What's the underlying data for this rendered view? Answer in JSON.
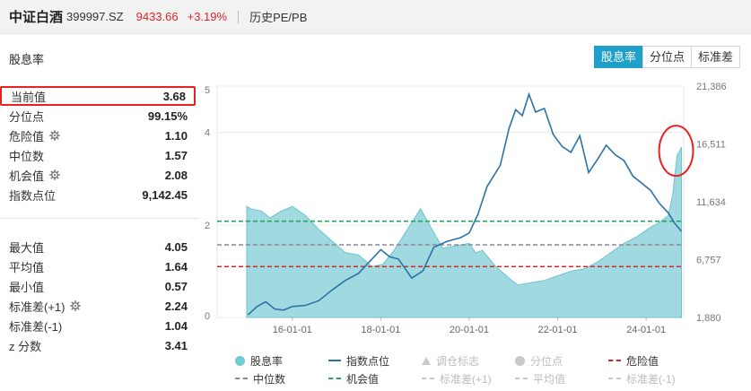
{
  "header": {
    "name": "中证白酒",
    "code": "399997.SZ",
    "price": "9433.66",
    "change": "+3.19%",
    "history_link": "历史PE/PB"
  },
  "section_title": "股息率",
  "tabs": [
    {
      "label": "股息率",
      "active": true
    },
    {
      "label": "分位点",
      "active": false
    },
    {
      "label": "标准差",
      "active": false
    }
  ],
  "stats_top": [
    {
      "label": "当前值",
      "value": "3.68",
      "highlight": true,
      "gear": false
    },
    {
      "label": "分位点",
      "value": "99.15%",
      "gear": false
    },
    {
      "label": "危险值",
      "value": "1.10",
      "gear": true
    },
    {
      "label": "中位数",
      "value": "1.57",
      "gear": false
    },
    {
      "label": "机会值",
      "value": "2.08",
      "gear": true
    },
    {
      "label": "指数点位",
      "value": "9,142.45",
      "gear": false
    }
  ],
  "stats_bottom": [
    {
      "label": "最大值",
      "value": "4.05",
      "gear": false
    },
    {
      "label": "平均值",
      "value": "1.64",
      "gear": false
    },
    {
      "label": "最小值",
      "value": "0.57",
      "gear": false
    },
    {
      "label": "标准差(+1)",
      "value": "2.24",
      "gear": true
    },
    {
      "label": "标准差(-1)",
      "value": "1.04",
      "gear": false
    },
    {
      "label": "z 分数",
      "value": "3.41",
      "gear": false
    }
  ],
  "legend": [
    {
      "label": "股息率",
      "shape": "dot",
      "color": "#6fcbd4",
      "on": true
    },
    {
      "label": "指数点位",
      "shape": "line",
      "color": "#2a73a8",
      "on": true
    },
    {
      "label": "调仓标志",
      "shape": "triangle",
      "color": "#c9c9c9",
      "on": false
    },
    {
      "label": "分位点",
      "shape": "dot",
      "color": "#c9c9c9",
      "on": false
    },
    {
      "label": "危险值",
      "shape": "dash",
      "color": "#d62828",
      "on": true
    },
    {
      "label": "中位数",
      "shape": "dash",
      "color": "#8a8a9a",
      "on": true
    },
    {
      "label": "机会值",
      "shape": "dash",
      "color": "#27a55a",
      "on": true
    },
    {
      "label": "标准差(+1)",
      "shape": "dash",
      "color": "#c9c9c9",
      "on": false
    },
    {
      "label": "平均值",
      "shape": "dash",
      "color": "#c9c9c9",
      "on": false
    },
    {
      "label": "标准差(-1)",
      "shape": "dash",
      "color": "#c9c9c9",
      "on": false
    }
  ],
  "colors": {
    "area_fill": "#8fd3da",
    "area_line": "#6cc4cd",
    "index_line": "#2a73a8",
    "danger": "#d62828",
    "median": "#8a8a9a",
    "opportunity": "#27a55a",
    "annotation": "#e8231f",
    "accent_tab": "#1fa0c8"
  },
  "chart_data": {
    "type": "area",
    "x_ticks": [
      "16-01-01",
      "18-01-01",
      "20-01-01",
      "22-01-01",
      "24-01-01"
    ],
    "x_tick_years": [
      2016,
      2018,
      2020,
      2022,
      2024
    ],
    "x_range": [
      2014.3,
      2024.85
    ],
    "y_left_ticks": [
      "0",
      "2",
      "4",
      "5"
    ],
    "y_left_range": [
      0,
      5
    ],
    "y_right_ticks": [
      "1,880",
      "6,757",
      "11,634",
      "16,511",
      "21,386"
    ],
    "y_right_range": [
      1880,
      21386
    ],
    "reference_lines": {
      "danger": 1.1,
      "median": 1.57,
      "opportunity": 2.08
    },
    "series": [
      {
        "name": "股息率",
        "axis": "left",
        "x": [
          2014.97,
          2015.05,
          2015.3,
          2015.5,
          2015.75,
          2016.0,
          2016.3,
          2016.6,
          2016.9,
          2017.2,
          2017.5,
          2017.8,
          2018.05,
          2018.3,
          2018.6,
          2018.9,
          2019.1,
          2019.4,
          2019.7,
          2020.0,
          2020.15,
          2020.3,
          2020.6,
          2020.9,
          2021.1,
          2021.4,
          2021.7,
          2022.0,
          2022.3,
          2022.6,
          2022.9,
          2023.2,
          2023.5,
          2023.8,
          2024.1,
          2024.3,
          2024.5,
          2024.6,
          2024.7,
          2024.8
        ],
        "values": [
          2.4,
          2.35,
          2.3,
          2.15,
          2.3,
          2.4,
          2.2,
          1.9,
          1.65,
          1.4,
          1.35,
          1.1,
          1.15,
          1.45,
          1.9,
          2.35,
          2.0,
          1.5,
          1.55,
          1.6,
          1.4,
          1.45,
          1.1,
          0.85,
          0.7,
          0.75,
          0.8,
          0.9,
          1.0,
          1.05,
          1.2,
          1.4,
          1.6,
          1.75,
          1.95,
          2.05,
          2.2,
          2.65,
          3.5,
          3.68
        ]
      },
      {
        "name": "指数点位",
        "axis": "right",
        "x": [
          2015.0,
          2015.2,
          2015.4,
          2015.6,
          2015.8,
          2016.0,
          2016.3,
          2016.6,
          2016.9,
          2017.2,
          2017.5,
          2017.8,
          2018.0,
          2018.2,
          2018.4,
          2018.7,
          2018.95,
          2019.2,
          2019.5,
          2019.8,
          2020.0,
          2020.2,
          2020.4,
          2020.7,
          2020.9,
          2021.05,
          2021.2,
          2021.35,
          2021.5,
          2021.7,
          2021.9,
          2022.1,
          2022.3,
          2022.5,
          2022.7,
          2022.9,
          2023.1,
          2023.3,
          2023.5,
          2023.7,
          2023.9,
          2024.1,
          2024.3,
          2024.5,
          2024.65,
          2024.8
        ],
        "values": [
          2100,
          2800,
          3200,
          2600,
          2500,
          2800,
          2900,
          3300,
          4200,
          5000,
          5600,
          6800,
          7600,
          7000,
          6800,
          5200,
          5800,
          7800,
          8300,
          8600,
          9000,
          10600,
          12900,
          14700,
          17800,
          19400,
          18900,
          20700,
          19200,
          19500,
          17300,
          16300,
          15800,
          17200,
          14100,
          15200,
          16400,
          15600,
          15100,
          13800,
          13200,
          12600,
          11500,
          10700,
          9800,
          9142
        ]
      }
    ]
  }
}
